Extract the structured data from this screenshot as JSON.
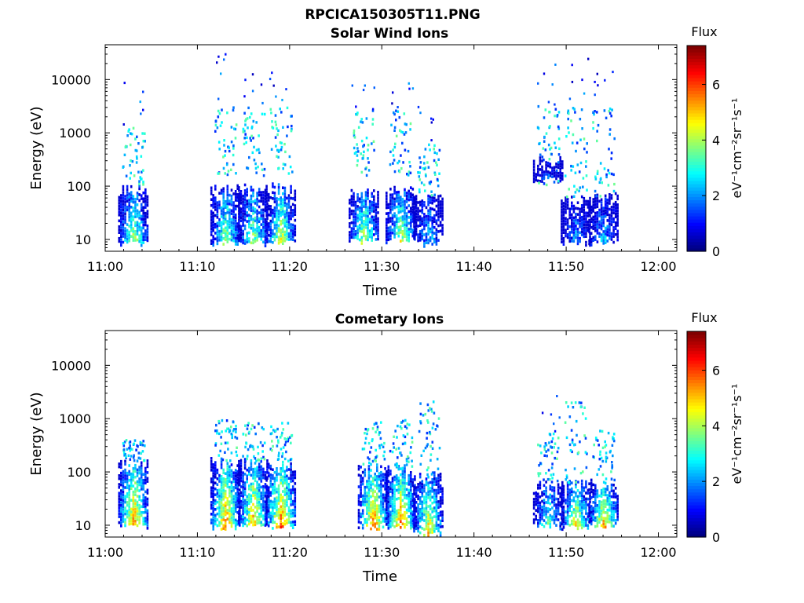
{
  "figure": {
    "title": "RPCICA150305T11.PNG",
    "colorbar": {
      "label": "Flux",
      "unit_text": "eV⁻¹cm⁻²sr⁻¹s⁻¹",
      "ticks": [
        "0",
        "2",
        "4",
        "6"
      ],
      "range": [
        0,
        7.4
      ],
      "colormap": "jet"
    }
  },
  "chart_data": [
    {
      "type": "heatmap",
      "title": "Solar Wind Ions",
      "xlabel": "Time",
      "ylabel": "Energy (eV)",
      "x_ticks": [
        "11:00",
        "11:10",
        "11:20",
        "11:30",
        "11:40",
        "11:50",
        "12:00"
      ],
      "y_ticks": [
        "10",
        "100",
        "1000",
        "10000"
      ],
      "y_scale": "log",
      "ylim": [
        6,
        45000
      ],
      "xlim_minutes_after_11_00": [
        0,
        62
      ],
      "bursts": [
        {
          "time": "11:03",
          "low": [
            7,
            90
          ],
          "mid": [
            100,
            1200
          ],
          "peak_flux": 5.2,
          "sparse_top": 10000
        },
        {
          "time": "11:13",
          "low": [
            7,
            90
          ],
          "mid": [
            150,
            3000
          ],
          "peak_flux": 5.0,
          "sparse_top": 30000
        },
        {
          "time": "11:16",
          "low": [
            7,
            90
          ],
          "mid": [
            150,
            3000
          ],
          "peak_flux": 5.0,
          "sparse_top": 20000
        },
        {
          "time": "11:19",
          "low": [
            7,
            90
          ],
          "mid": [
            150,
            3000
          ],
          "peak_flux": 5.6,
          "sparse_top": 15000
        },
        {
          "time": "11:28",
          "low": [
            8,
            80
          ],
          "mid": [
            150,
            2500
          ],
          "peak_flux": 5.2,
          "sparse_top": 13000
        },
        {
          "time": "11:32",
          "low": [
            8,
            80
          ],
          "mid": [
            150,
            2500
          ],
          "peak_flux": 5.3,
          "sparse_top": 10000
        },
        {
          "time": "11:35",
          "low": [
            7,
            60
          ],
          "mid": [
            60,
            600
          ],
          "peak_flux": 3.5,
          "sparse_top": 3000
        },
        {
          "time": "11:48",
          "low": [
            100,
            300
          ],
          "mid": [
            100,
            3000
          ],
          "peak_flux": 2.5,
          "sparse_top": 20000
        },
        {
          "time": "11:51",
          "low": [
            7,
            60
          ],
          "mid": [
            60,
            3000
          ],
          "peak_flux": 3.0,
          "sparse_top": 25000
        },
        {
          "time": "11:54",
          "low": [
            7,
            60
          ],
          "mid": [
            60,
            3000
          ],
          "peak_flux": 3.5,
          "sparse_top": 15000
        }
      ]
    },
    {
      "type": "heatmap",
      "title": "Cometary Ions",
      "xlabel": "Time",
      "ylabel": "Energy (eV)",
      "x_ticks": [
        "11:00",
        "11:10",
        "11:20",
        "11:30",
        "11:40",
        "11:50",
        "12:00"
      ],
      "y_ticks": [
        "10",
        "100",
        "1000",
        "10000"
      ],
      "y_scale": "log",
      "ylim": [
        6,
        45000
      ],
      "xlim_minutes_after_11_00": [
        0,
        62
      ],
      "bursts": [
        {
          "time": "11:03",
          "low": [
            8,
            150
          ],
          "mid": [
            150,
            400
          ],
          "peak_flux": 6.8,
          "sparse_top": 400
        },
        {
          "time": "11:13",
          "low": [
            8,
            150
          ],
          "mid": [
            150,
            900
          ],
          "peak_flux": 6.8,
          "sparse_top": 900
        },
        {
          "time": "11:16",
          "low": [
            8,
            150
          ],
          "mid": [
            150,
            800
          ],
          "peak_flux": 6.5,
          "sparse_top": 800
        },
        {
          "time": "11:19",
          "low": [
            8,
            150
          ],
          "mid": [
            150,
            800
          ],
          "peak_flux": 7.0,
          "sparse_top": 800
        },
        {
          "time": "11:29",
          "low": [
            8,
            120
          ],
          "mid": [
            120,
            900
          ],
          "peak_flux": 7.0,
          "sparse_top": 900
        },
        {
          "time": "11:32",
          "low": [
            8,
            120
          ],
          "mid": [
            120,
            900
          ],
          "peak_flux": 6.8,
          "sparse_top": 900
        },
        {
          "time": "11:35",
          "low": [
            6,
            80
          ],
          "mid": [
            80,
            2500
          ],
          "peak_flux": 6.0,
          "sparse_top": 2500
        },
        {
          "time": "11:48",
          "low": [
            8,
            60
          ],
          "mid": [
            60,
            500
          ],
          "peak_flux": 4.5,
          "sparse_top": 5000
        },
        {
          "time": "11:51",
          "low": [
            8,
            60
          ],
          "mid": [
            60,
            2000
          ],
          "peak_flux": 6.0,
          "sparse_top": 2000
        },
        {
          "time": "11:54",
          "low": [
            8,
            60
          ],
          "mid": [
            60,
            600
          ],
          "peak_flux": 6.5,
          "sparse_top": 600
        }
      ]
    }
  ]
}
